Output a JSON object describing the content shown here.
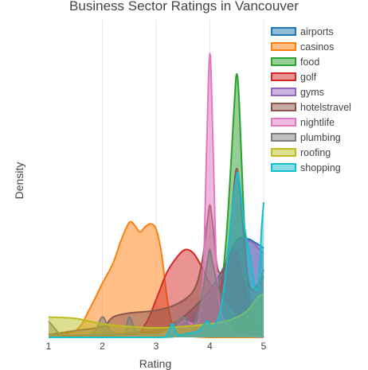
{
  "chart_data": {
    "type": "area",
    "title": "Business Sector Ratings in Vancouver",
    "xlabel": "Rating",
    "ylabel": "Density",
    "xlim": [
      1,
      5
    ],
    "ylim": [
      0,
      2.35
    ],
    "x_ticks": [
      1,
      2,
      3,
      4,
      5
    ],
    "grid": true,
    "legend_position": "top-right",
    "series": [
      {
        "name": "airports",
        "color": "#1f77b4",
        "points": [
          [
            1,
            0.01
          ],
          [
            2,
            0.02
          ],
          [
            3,
            0.05
          ],
          [
            3.5,
            0.15
          ],
          [
            4,
            0.35
          ],
          [
            4.3,
            0.55
          ],
          [
            4.5,
            0.72
          ],
          [
            4.7,
            0.73
          ],
          [
            4.85,
            0.7
          ],
          [
            5,
            0.66
          ]
        ]
      },
      {
        "name": "casinos",
        "color": "#ff7f0e",
        "points": [
          [
            1,
            0.02
          ],
          [
            1.5,
            0.05
          ],
          [
            1.75,
            0.2
          ],
          [
            2,
            0.4
          ],
          [
            2.2,
            0.55
          ],
          [
            2.35,
            0.72
          ],
          [
            2.5,
            0.85
          ],
          [
            2.6,
            0.83
          ],
          [
            2.7,
            0.78
          ],
          [
            2.8,
            0.82
          ],
          [
            2.9,
            0.84
          ],
          [
            3.0,
            0.8
          ],
          [
            3.1,
            0.62
          ],
          [
            3.2,
            0.3
          ],
          [
            3.3,
            0.1
          ],
          [
            3.5,
            0.02
          ],
          [
            4,
            0.0
          ],
          [
            5,
            0.0
          ]
        ]
      },
      {
        "name": "food",
        "color": "#2ca02c",
        "points": [
          [
            1,
            0.0
          ],
          [
            3,
            0.0
          ],
          [
            3.6,
            0.02
          ],
          [
            3.8,
            0.06
          ],
          [
            4.0,
            0.12
          ],
          [
            4.1,
            0.2
          ],
          [
            4.25,
            0.5
          ],
          [
            4.35,
            1.0
          ],
          [
            4.45,
            1.7
          ],
          [
            4.5,
            1.95
          ],
          [
            4.55,
            1.7
          ],
          [
            4.62,
            1.0
          ],
          [
            4.7,
            0.45
          ],
          [
            4.8,
            0.15
          ],
          [
            4.9,
            0.04
          ],
          [
            5,
            0.0
          ]
        ]
      },
      {
        "name": "golf",
        "color": "#d62728",
        "points": [
          [
            1,
            0.0
          ],
          [
            2.5,
            0.02
          ],
          [
            2.8,
            0.1
          ],
          [
            3.0,
            0.28
          ],
          [
            3.2,
            0.48
          ],
          [
            3.4,
            0.6
          ],
          [
            3.55,
            0.65
          ],
          [
            3.7,
            0.62
          ],
          [
            3.85,
            0.52
          ],
          [
            4.0,
            0.4
          ],
          [
            4.1,
            0.36
          ],
          [
            4.2,
            0.38
          ],
          [
            4.3,
            0.48
          ],
          [
            4.4,
            0.62
          ],
          [
            4.5,
            0.62
          ],
          [
            4.6,
            0.45
          ],
          [
            4.75,
            0.2
          ],
          [
            4.9,
            0.05
          ],
          [
            5,
            0.0
          ]
        ]
      },
      {
        "name": "gyms",
        "color": "#9467bd",
        "points": [
          [
            1,
            0.0
          ],
          [
            3,
            0.02
          ],
          [
            3.5,
            0.1
          ],
          [
            4.0,
            0.3
          ],
          [
            4.3,
            0.52
          ],
          [
            4.5,
            0.68
          ],
          [
            4.65,
            0.72
          ],
          [
            4.8,
            0.7
          ],
          [
            4.9,
            0.66
          ],
          [
            5,
            0.62
          ]
        ]
      },
      {
        "name": "hotelstravel",
        "color": "#8c564b",
        "points": [
          [
            1,
            0.02
          ],
          [
            1.5,
            0.05
          ],
          [
            2,
            0.08
          ],
          [
            2.2,
            0.15
          ],
          [
            2.5,
            0.18
          ],
          [
            3,
            0.2
          ],
          [
            3.4,
            0.25
          ],
          [
            3.7,
            0.35
          ],
          [
            3.85,
            0.55
          ],
          [
            3.95,
            0.85
          ],
          [
            4.0,
            0.98
          ],
          [
            4.05,
            0.85
          ],
          [
            4.15,
            0.5
          ],
          [
            4.3,
            0.55
          ],
          [
            4.4,
            0.9
          ],
          [
            4.5,
            1.25
          ],
          [
            4.6,
            0.9
          ],
          [
            4.7,
            0.45
          ],
          [
            4.8,
            0.35
          ],
          [
            4.9,
            0.4
          ],
          [
            5,
            0.45
          ]
        ]
      },
      {
        "name": "nightlife",
        "color": "#e377c2",
        "points": [
          [
            1,
            0.0
          ],
          [
            2,
            0.0
          ],
          [
            3.0,
            0.02
          ],
          [
            3.3,
            0.05
          ],
          [
            3.5,
            0.12
          ],
          [
            3.7,
            0.1
          ],
          [
            3.8,
            0.15
          ],
          [
            3.88,
            0.5
          ],
          [
            3.94,
            1.4
          ],
          [
            4.0,
            2.1
          ],
          [
            4.06,
            1.4
          ],
          [
            4.12,
            0.55
          ],
          [
            4.2,
            0.2
          ],
          [
            4.35,
            0.08
          ],
          [
            4.5,
            0.02
          ],
          [
            5,
            0.0
          ]
        ]
      },
      {
        "name": "plumbing",
        "color": "#7f7f7f",
        "points": [
          [
            1,
            0.12
          ],
          [
            1.15,
            0.05
          ],
          [
            1.3,
            0.0
          ],
          [
            1.8,
            0.02
          ],
          [
            2,
            0.15
          ],
          [
            2.15,
            0.05
          ],
          [
            2.4,
            0.02
          ],
          [
            2.5,
            0.15
          ],
          [
            2.65,
            0.04
          ],
          [
            3,
            0.02
          ],
          [
            3.3,
            0.08
          ],
          [
            3.5,
            0.15
          ],
          [
            3.65,
            0.08
          ],
          [
            3.8,
            0.2
          ],
          [
            3.95,
            0.55
          ],
          [
            4.0,
            0.65
          ],
          [
            4.05,
            0.55
          ],
          [
            4.2,
            0.3
          ],
          [
            4.35,
            0.22
          ],
          [
            4.5,
            0.15
          ],
          [
            4.7,
            0.15
          ],
          [
            4.85,
            0.3
          ],
          [
            5,
            0.5
          ]
        ]
      },
      {
        "name": "roofing",
        "color": "#bcbd22",
        "points": [
          [
            1,
            0.15
          ],
          [
            1.5,
            0.14
          ],
          [
            2,
            0.1
          ],
          [
            2.5,
            0.08
          ],
          [
            3,
            0.07
          ],
          [
            3.5,
            0.08
          ],
          [
            4,
            0.1
          ],
          [
            4.3,
            0.12
          ],
          [
            4.5,
            0.15
          ],
          [
            4.7,
            0.2
          ],
          [
            4.9,
            0.3
          ],
          [
            5,
            0.32
          ]
        ]
      },
      {
        "name": "shopping",
        "color": "#17becf",
        "points": [
          [
            1,
            0.0
          ],
          [
            3,
            0.0
          ],
          [
            3.2,
            0.02
          ],
          [
            3.3,
            0.1
          ],
          [
            3.4,
            0.02
          ],
          [
            3.6,
            0.03
          ],
          [
            3.8,
            0.05
          ],
          [
            3.95,
            0.12
          ],
          [
            4.05,
            0.08
          ],
          [
            4.2,
            0.2
          ],
          [
            4.3,
            0.5
          ],
          [
            4.4,
            0.9
          ],
          [
            4.5,
            1.2
          ],
          [
            4.55,
            1.15
          ],
          [
            4.65,
            0.8
          ],
          [
            4.75,
            0.6
          ],
          [
            4.85,
            0.35
          ],
          [
            4.92,
            0.5
          ],
          [
            4.96,
            0.8
          ],
          [
            5,
            1.0
          ]
        ]
      }
    ]
  }
}
